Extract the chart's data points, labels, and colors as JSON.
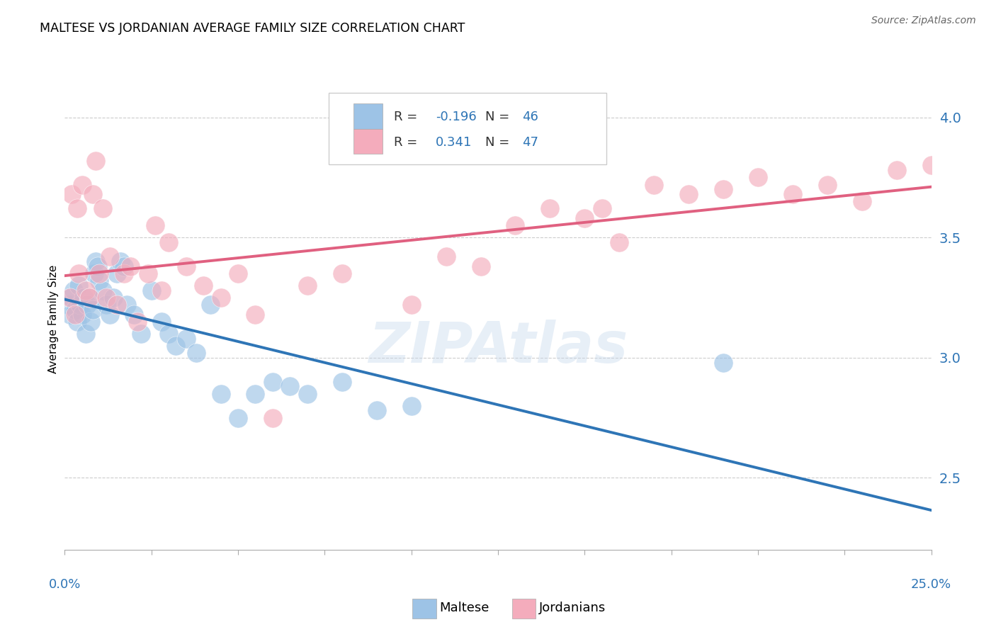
{
  "title": "MALTESE VS JORDANIAN AVERAGE FAMILY SIZE CORRELATION CHART",
  "source": "Source: ZipAtlas.com",
  "ylabel": "Average Family Size",
  "xlim": [
    0,
    25
  ],
  "ylim": [
    2.2,
    4.12
  ],
  "yticks": [
    2.5,
    3.0,
    3.5,
    4.0
  ],
  "blue_R": -0.196,
  "blue_N": 46,
  "pink_R": 0.341,
  "pink_N": 47,
  "blue_color": "#9DC3E6",
  "pink_color": "#F4ACBC",
  "blue_line_color": "#2E75B6",
  "pink_line_color": "#E06080",
  "tick_color": "#2E75B6",
  "legend_label_blue": "Maltese",
  "legend_label_pink": "Jordanians",
  "watermark": "ZIPAtlas",
  "blue_scatter_x": [
    0.1,
    0.15,
    0.2,
    0.25,
    0.3,
    0.35,
    0.4,
    0.45,
    0.5,
    0.55,
    0.6,
    0.65,
    0.7,
    0.75,
    0.8,
    0.85,
    0.9,
    0.95,
    1.0,
    1.1,
    1.2,
    1.3,
    1.4,
    1.5,
    1.6,
    1.7,
    1.8,
    2.0,
    2.2,
    2.5,
    2.8,
    3.0,
    3.2,
    3.5,
    3.8,
    4.2,
    4.5,
    5.0,
    5.5,
    6.0,
    6.5,
    7.0,
    8.0,
    9.0,
    10.0,
    19.0
  ],
  "blue_scatter_y": [
    3.22,
    3.18,
    3.25,
    3.28,
    3.2,
    3.15,
    3.3,
    3.22,
    3.18,
    3.25,
    3.1,
    3.22,
    3.25,
    3.15,
    3.2,
    3.35,
    3.4,
    3.38,
    3.32,
    3.28,
    3.22,
    3.18,
    3.25,
    3.35,
    3.4,
    3.38,
    3.22,
    3.18,
    3.1,
    3.28,
    3.15,
    3.1,
    3.05,
    3.08,
    3.02,
    3.22,
    2.85,
    2.75,
    2.85,
    2.9,
    2.88,
    2.85,
    2.9,
    2.78,
    2.8,
    2.98
  ],
  "pink_scatter_x": [
    0.15,
    0.2,
    0.3,
    0.35,
    0.4,
    0.5,
    0.6,
    0.7,
    0.8,
    0.9,
    1.0,
    1.1,
    1.2,
    1.3,
    1.5,
    1.7,
    1.9,
    2.1,
    2.4,
    2.6,
    2.8,
    3.0,
    3.5,
    4.0,
    4.5,
    5.0,
    5.5,
    6.0,
    7.0,
    8.0,
    10.0,
    12.0,
    13.0,
    14.0,
    15.0,
    16.0,
    17.0,
    18.0,
    19.0,
    20.0,
    21.0,
    22.0,
    23.0,
    24.0,
    25.0,
    15.5,
    11.0
  ],
  "pink_scatter_y": [
    3.25,
    3.68,
    3.18,
    3.62,
    3.35,
    3.72,
    3.28,
    3.25,
    3.68,
    3.82,
    3.35,
    3.62,
    3.25,
    3.42,
    3.22,
    3.35,
    3.38,
    3.15,
    3.35,
    3.55,
    3.28,
    3.48,
    3.38,
    3.3,
    3.25,
    3.35,
    3.18,
    2.75,
    3.3,
    3.35,
    3.22,
    3.38,
    3.55,
    3.62,
    3.58,
    3.48,
    3.72,
    3.68,
    3.7,
    3.75,
    3.68,
    3.72,
    3.65,
    3.78,
    3.8,
    3.62,
    3.42
  ]
}
